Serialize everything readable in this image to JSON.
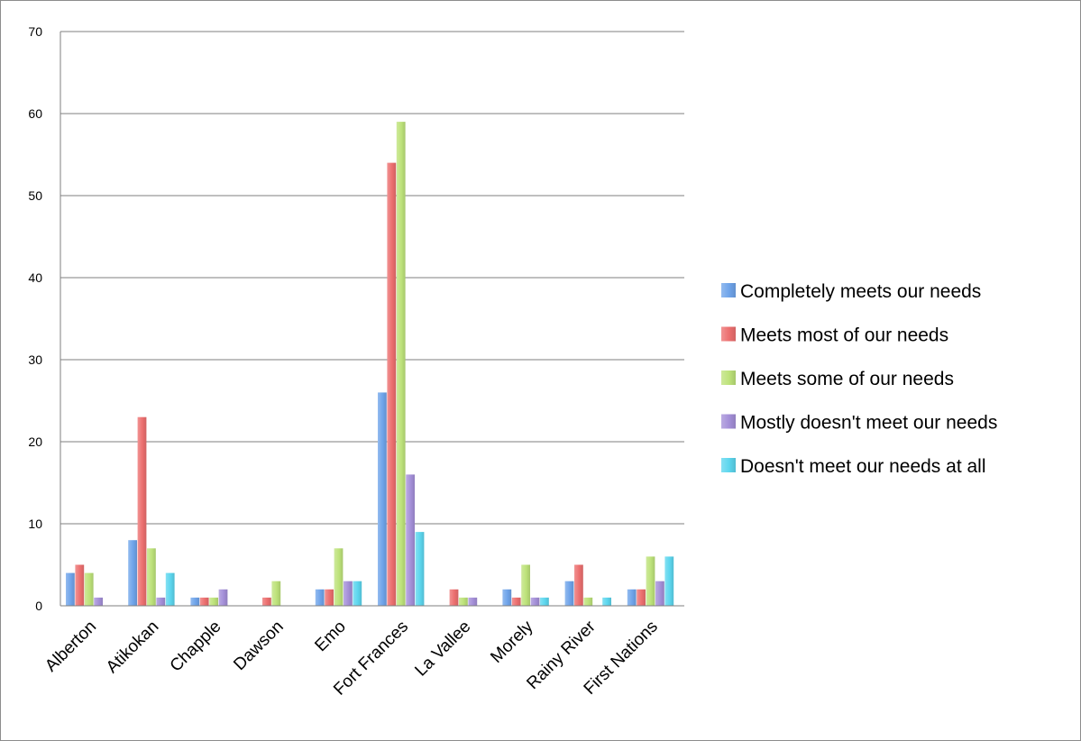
{
  "chart_data": {
    "type": "bar",
    "title": "",
    "xlabel": "",
    "ylabel": "",
    "ylim": [
      0,
      70
    ],
    "yticks": [
      0,
      10,
      20,
      30,
      40,
      50,
      60,
      70
    ],
    "grid": true,
    "legend_position": "right",
    "categories": [
      "Alberton",
      "Atikokan",
      "Chapple",
      "Dawson",
      "Emo",
      "Fort Frances",
      "La Vallee",
      "Morely",
      "Rainy River",
      "First Nations"
    ],
    "series": [
      {
        "name": "Completely meets our needs",
        "color": "#6fa4ea",
        "values": [
          4,
          8,
          1,
          0,
          2,
          26,
          0,
          2,
          3,
          2
        ]
      },
      {
        "name": "Meets most of our needs",
        "color": "#ec6f6f",
        "values": [
          5,
          23,
          1,
          1,
          2,
          54,
          2,
          1,
          5,
          2
        ]
      },
      {
        "name": "Meets some of our needs",
        "color": "#bde27a",
        "values": [
          4,
          7,
          1,
          3,
          7,
          59,
          1,
          5,
          1,
          6
        ]
      },
      {
        "name": "Mostly doesn't meet our needs",
        "color": "#a48fd8",
        "values": [
          1,
          1,
          2,
          0,
          3,
          16,
          1,
          1,
          0,
          3
        ]
      },
      {
        "name": "Doesn't meet our needs at all",
        "color": "#5cd6ee",
        "values": [
          0,
          4,
          0,
          0,
          3,
          9,
          0,
          1,
          1,
          6
        ]
      }
    ]
  }
}
